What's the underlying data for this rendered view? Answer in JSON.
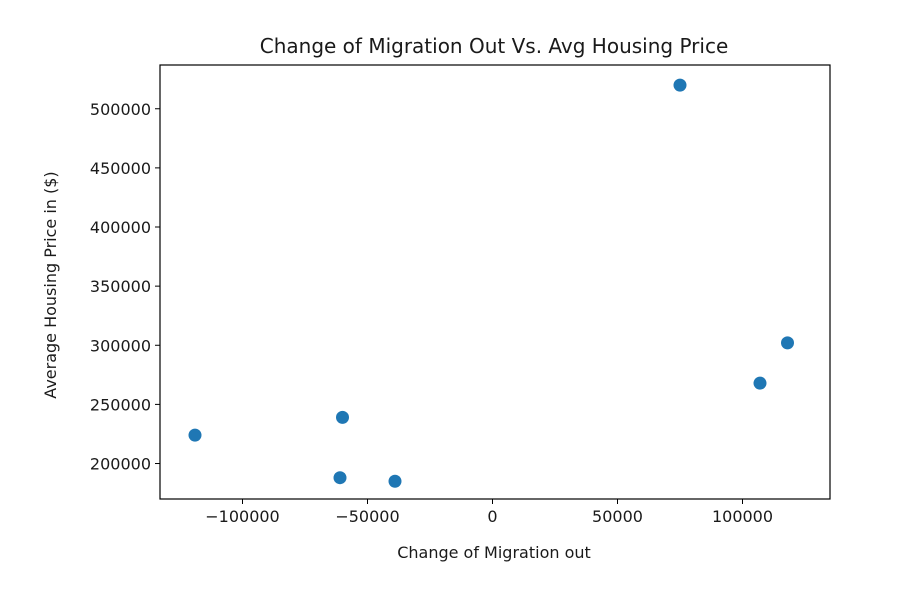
{
  "chart_data": {
    "type": "scatter",
    "title": "Change of Migration Out Vs. Avg Housing Price",
    "xlabel": "Change of Migration out",
    "ylabel": "Average Housing Price in ($)",
    "xlim": [
      -133000,
      135000
    ],
    "ylim": [
      170000,
      537000
    ],
    "xticks": [
      -100000,
      -50000,
      0,
      50000,
      100000
    ],
    "xtick_labels": [
      "−100000",
      "−50000",
      "0",
      "50000",
      "100000"
    ],
    "yticks": [
      200000,
      250000,
      300000,
      350000,
      400000,
      450000,
      500000
    ],
    "ytick_labels": [
      "200000",
      "250000",
      "300000",
      "350000",
      "400000",
      "450000",
      "500000"
    ],
    "grid": false,
    "marker_color": "#1f77b4",
    "points": [
      {
        "x": -119000,
        "y": 224000
      },
      {
        "x": -60000,
        "y": 239000
      },
      {
        "x": -61000,
        "y": 188000
      },
      {
        "x": -39000,
        "y": 185000
      },
      {
        "x": 75000,
        "y": 520000
      },
      {
        "x": 107000,
        "y": 268000
      },
      {
        "x": 118000,
        "y": 302000
      }
    ]
  }
}
